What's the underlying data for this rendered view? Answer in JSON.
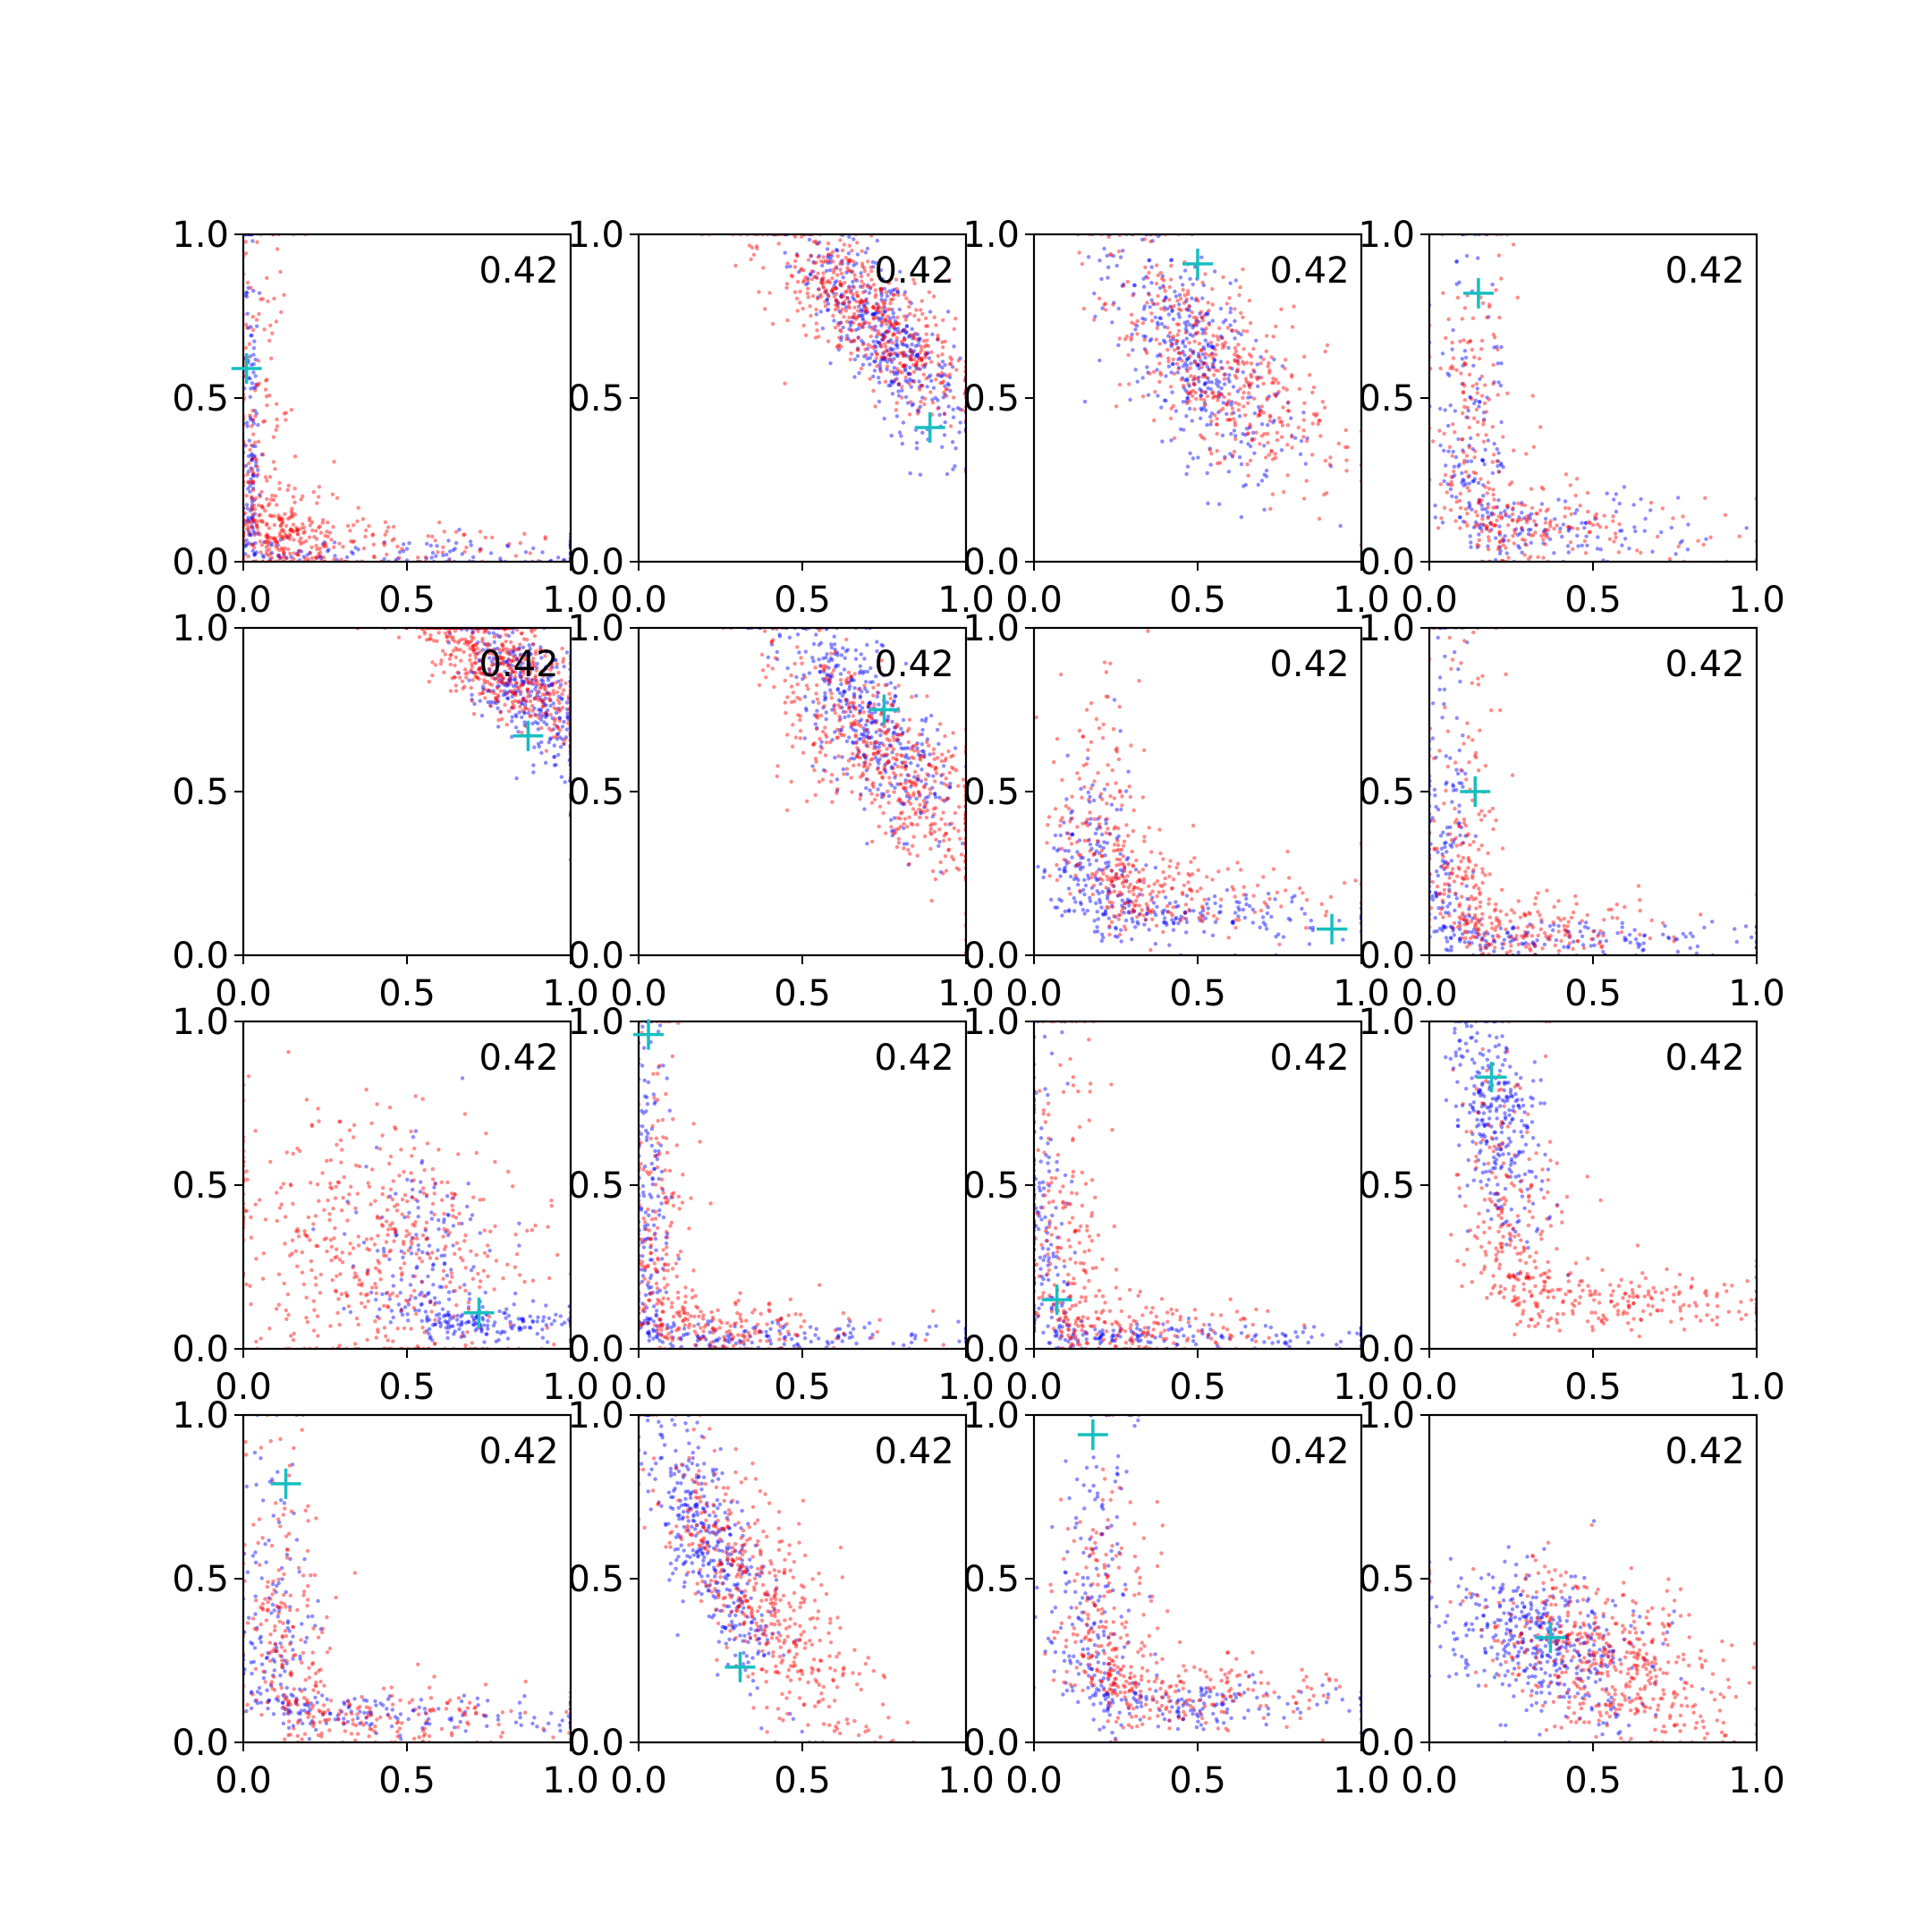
{
  "chart_data": {
    "type": "scatter",
    "layout": {
      "rows": 4,
      "cols": 4
    },
    "xlim": [
      0,
      1
    ],
    "ylim": [
      0,
      1
    ],
    "xticks": [
      "0.0",
      "0.5",
      "1.0"
    ],
    "yticks": [
      "0.0",
      "0.5",
      "1.0"
    ],
    "annotation": "0.42",
    "colors": {
      "series_a": "#0000ff",
      "series_b": "#ff0000",
      "marker": "#17bfbf",
      "axis": "#000000"
    },
    "panels": [
      {
        "marker": [
          0.01,
          0.59
        ],
        "clusters": [
          {
            "type": "L",
            "color": "b",
            "n": 260,
            "corner": [
              0.02,
              0.02
            ],
            "sx": 0.015,
            "sy": 0.5,
            "sxh": 0.7,
            "syh": 0.025
          },
          {
            "type": "L",
            "color": "r",
            "n": 300,
            "corner": [
              0.05,
              0.05
            ],
            "sx": 0.05,
            "sy": 0.45,
            "sxh": 0.4,
            "syh": 0.05
          },
          {
            "type": "blob",
            "color": "r",
            "n": 150,
            "c": [
              0.1,
              0.1
            ],
            "sx": 0.08,
            "sy": 0.07,
            "rot": 0
          }
        ]
      },
      {
        "marker": [
          0.89,
          0.41
        ],
        "clusters": [
          {
            "type": "blob",
            "color": "b",
            "n": 420,
            "c": [
              0.76,
              0.68
            ],
            "sx": 0.18,
            "sy": 0.07,
            "rot": -0.9
          },
          {
            "type": "blob",
            "color": "r",
            "n": 520,
            "c": [
              0.7,
              0.76
            ],
            "sx": 0.2,
            "sy": 0.08,
            "rot": -0.7
          }
        ]
      },
      {
        "marker": [
          0.5,
          0.91
        ],
        "clusters": [
          {
            "type": "blob",
            "color": "b",
            "n": 380,
            "c": [
              0.5,
              0.62
            ],
            "sx": 0.2,
            "sy": 0.09,
            "rot": -1.0
          },
          {
            "type": "blob",
            "color": "r",
            "n": 450,
            "c": [
              0.58,
              0.58
            ],
            "sx": 0.24,
            "sy": 0.1,
            "rot": -0.8
          }
        ]
      },
      {
        "marker": [
          0.15,
          0.82
        ],
        "clusters": [
          {
            "type": "L",
            "color": "b",
            "n": 260,
            "corner": [
              0.12,
              0.1
            ],
            "sx": 0.06,
            "sy": 0.42,
            "sxh": 0.35,
            "syh": 0.05
          },
          {
            "type": "L",
            "color": "r",
            "n": 320,
            "corner": [
              0.14,
              0.1
            ],
            "sx": 0.07,
            "sy": 0.4,
            "sxh": 0.3,
            "syh": 0.06
          }
        ]
      },
      {
        "marker": [
          0.87,
          0.67
        ],
        "clusters": [
          {
            "type": "blob",
            "color": "b",
            "n": 380,
            "c": [
              0.88,
              0.8
            ],
            "sx": 0.16,
            "sy": 0.07,
            "rot": -0.9
          },
          {
            "type": "blob",
            "color": "r",
            "n": 520,
            "c": [
              0.8,
              0.88
            ],
            "sx": 0.17,
            "sy": 0.07,
            "rot": -0.6
          }
        ]
      },
      {
        "marker": [
          0.75,
          0.75
        ],
        "clusters": [
          {
            "type": "blob",
            "color": "b",
            "n": 400,
            "c": [
              0.7,
              0.72
            ],
            "sx": 0.2,
            "sy": 0.08,
            "rot": -1.0
          },
          {
            "type": "blob",
            "color": "r",
            "n": 520,
            "c": [
              0.75,
              0.6
            ],
            "sx": 0.24,
            "sy": 0.09,
            "rot": -0.8
          }
        ]
      },
      {
        "marker": [
          0.91,
          0.08
        ],
        "clusters": [
          {
            "type": "L",
            "color": "b",
            "n": 320,
            "corner": [
              0.18,
              0.12
            ],
            "sx": 0.07,
            "sy": 0.22,
            "sxh": 0.4,
            "syh": 0.04
          },
          {
            "type": "L",
            "color": "r",
            "n": 350,
            "corner": [
              0.22,
              0.18
            ],
            "sx": 0.09,
            "sy": 0.3,
            "sxh": 0.3,
            "syh": 0.06
          }
        ]
      },
      {
        "marker": [
          0.14,
          0.5
        ],
        "clusters": [
          {
            "type": "L",
            "color": "b",
            "n": 300,
            "corner": [
              0.05,
              0.05
            ],
            "sx": 0.04,
            "sy": 0.45,
            "sxh": 0.55,
            "syh": 0.03
          },
          {
            "type": "L",
            "color": "r",
            "n": 340,
            "corner": [
              0.1,
              0.08
            ],
            "sx": 0.06,
            "sy": 0.4,
            "sxh": 0.3,
            "syh": 0.05
          }
        ]
      },
      {
        "marker": [
          0.72,
          0.11
        ],
        "clusters": [
          {
            "type": "L",
            "color": "b",
            "n": 300,
            "corner": [
              0.55,
              0.08
            ],
            "sx": 0.1,
            "sy": 0.25,
            "sxh": 0.25,
            "syh": 0.03
          },
          {
            "type": "blob",
            "color": "r",
            "n": 500,
            "c": [
              0.4,
              0.3
            ],
            "sx": 0.24,
            "sy": 0.2,
            "rot": -0.6
          }
        ]
      },
      {
        "marker": [
          0.03,
          0.96
        ],
        "clusters": [
          {
            "type": "L",
            "color": "b",
            "n": 300,
            "corner": [
              0.03,
              0.04
            ],
            "sx": 0.03,
            "sy": 0.45,
            "sxh": 0.5,
            "syh": 0.02
          },
          {
            "type": "L",
            "color": "r",
            "n": 340,
            "corner": [
              0.06,
              0.06
            ],
            "sx": 0.05,
            "sy": 0.42,
            "sxh": 0.3,
            "syh": 0.05
          }
        ]
      },
      {
        "marker": [
          0.07,
          0.15
        ],
        "clusters": [
          {
            "type": "L",
            "color": "b",
            "n": 300,
            "corner": [
              0.03,
              0.04
            ],
            "sx": 0.04,
            "sy": 0.45,
            "sxh": 0.55,
            "syh": 0.02
          },
          {
            "type": "L",
            "color": "r",
            "n": 340,
            "corner": [
              0.08,
              0.06
            ],
            "sx": 0.07,
            "sy": 0.42,
            "sxh": 0.3,
            "syh": 0.05
          }
        ]
      },
      {
        "marker": [
          0.19,
          0.83
        ],
        "clusters": [
          {
            "type": "blob",
            "color": "b",
            "n": 300,
            "c": [
              0.2,
              0.7
            ],
            "sx": 0.18,
            "sy": 0.06,
            "rot": -1.35
          },
          {
            "type": "L",
            "color": "r",
            "n": 420,
            "corner": [
              0.25,
              0.15
            ],
            "sx": 0.08,
            "sy": 0.35,
            "sxh": 0.45,
            "syh": 0.05
          }
        ]
      },
      {
        "marker": [
          0.13,
          0.79
        ],
        "clusters": [
          {
            "type": "L",
            "color": "b",
            "n": 280,
            "corner": [
              0.1,
              0.08
            ],
            "sx": 0.06,
            "sy": 0.4,
            "sxh": 0.6,
            "syh": 0.03
          },
          {
            "type": "L",
            "color": "r",
            "n": 340,
            "corner": [
              0.12,
              0.08
            ],
            "sx": 0.07,
            "sy": 0.4,
            "sxh": 0.4,
            "syh": 0.05
          }
        ]
      },
      {
        "marker": [
          0.31,
          0.23
        ],
        "clusters": [
          {
            "type": "blob",
            "color": "b",
            "n": 380,
            "c": [
              0.22,
              0.6
            ],
            "sx": 0.22,
            "sy": 0.06,
            "rot": -1.2
          },
          {
            "type": "blob",
            "color": "r",
            "n": 480,
            "c": [
              0.38,
              0.45
            ],
            "sx": 0.26,
            "sy": 0.09,
            "rot": -1.0
          }
        ]
      },
      {
        "marker": [
          0.18,
          0.94
        ],
        "clusters": [
          {
            "type": "L",
            "color": "b",
            "n": 320,
            "corner": [
              0.18,
              0.12
            ],
            "sx": 0.07,
            "sy": 0.38,
            "sxh": 0.45,
            "syh": 0.04
          },
          {
            "type": "L",
            "color": "r",
            "n": 380,
            "corner": [
              0.22,
              0.15
            ],
            "sx": 0.08,
            "sy": 0.35,
            "sxh": 0.3,
            "syh": 0.06
          }
        ]
      },
      {
        "marker": [
          0.37,
          0.32
        ],
        "clusters": [
          {
            "type": "blob",
            "color": "b",
            "n": 420,
            "c": [
              0.35,
              0.3
            ],
            "sx": 0.16,
            "sy": 0.1,
            "rot": -0.5
          },
          {
            "type": "blob",
            "color": "r",
            "n": 480,
            "c": [
              0.55,
              0.25
            ],
            "sx": 0.2,
            "sy": 0.11,
            "rot": -0.4
          }
        ]
      }
    ]
  }
}
